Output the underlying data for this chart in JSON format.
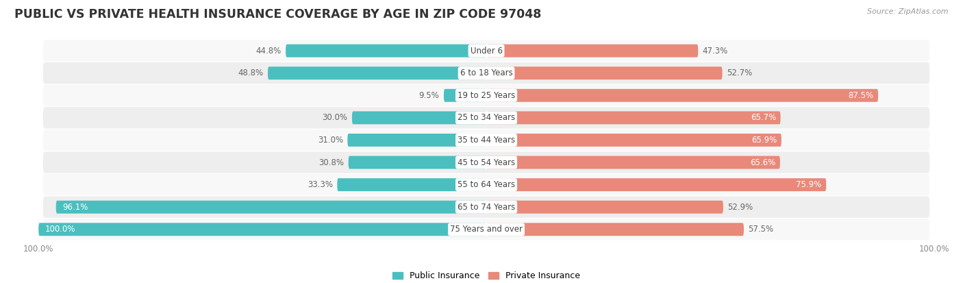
{
  "title": "PUBLIC VS PRIVATE HEALTH INSURANCE COVERAGE BY AGE IN ZIP CODE 97048",
  "source": "Source: ZipAtlas.com",
  "categories": [
    "Under 6",
    "6 to 18 Years",
    "19 to 25 Years",
    "25 to 34 Years",
    "35 to 44 Years",
    "45 to 54 Years",
    "55 to 64 Years",
    "65 to 74 Years",
    "75 Years and over"
  ],
  "public_values": [
    44.8,
    48.8,
    9.5,
    30.0,
    31.0,
    30.8,
    33.3,
    96.1,
    100.0
  ],
  "private_values": [
    47.3,
    52.7,
    87.5,
    65.7,
    65.9,
    65.6,
    75.9,
    52.9,
    57.5
  ],
  "public_color": "#4bbfbf",
  "private_color": "#e8897a",
  "text_color_dark": "#666666",
  "text_color_white": "#ffffff",
  "bar_height": 0.58,
  "max_value": 100.0,
  "title_fontsize": 12.5,
  "label_fontsize": 8.5,
  "legend_fontsize": 9,
  "row_bg_colors": [
    "#f8f8f8",
    "#eeeeee"
  ],
  "row_border_color": "#dddddd"
}
